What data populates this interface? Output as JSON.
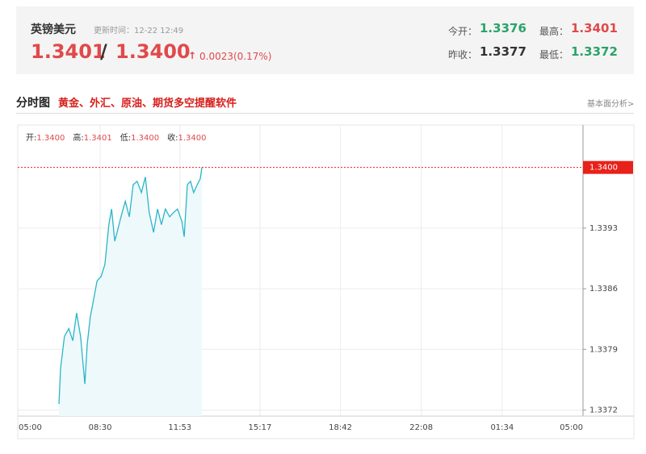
{
  "header": {
    "title": "英镑美元",
    "update_time": "更新时间：12-22 12:49",
    "bid": "1.3401",
    "separator": "/",
    "ask": "1.3400",
    "change": "0.0023(0.17%)",
    "stats": [
      {
        "label": "今开：",
        "value": "1.3376"
      },
      {
        "label": "最高：",
        "value": "1.3401"
      },
      {
        "label": "昨收：",
        "value": "1.3377"
      },
      {
        "label": "最低：",
        "value": "1.3372"
      }
    ]
  },
  "section": {
    "title": "分时图",
    "promo": "黄金、外汇、原油、期货多空提醒软件",
    "link": "基本面分析>"
  },
  "chart_data": {
    "type": "line",
    "info": [
      {
        "label": "开:",
        "value": "1.3400"
      },
      {
        "label": "高:",
        "value": "1.3401"
      },
      {
        "label": "低:",
        "value": "1.3400"
      },
      {
        "label": "收:",
        "value": "1.3400"
      }
    ],
    "x": [
      105,
      109,
      119,
      130,
      140,
      150,
      160,
      171,
      177,
      185,
      191,
      202,
      212,
      222,
      232,
      239,
      247,
      253,
      263,
      274,
      284,
      294,
      304,
      315,
      325,
      335,
      346,
      356,
      366,
      376,
      387,
      397,
      407,
      418,
      424,
      432,
      440,
      448,
      457,
      465,
      469
    ],
    "values": [
      1.33727,
      1.33768,
      1.33805,
      1.33814,
      1.338,
      1.33832,
      1.33805,
      1.3375,
      1.33796,
      1.33828,
      1.33842,
      1.33869,
      1.33874,
      1.33888,
      1.33934,
      1.33952,
      1.33915,
      1.33925,
      1.33943,
      1.33961,
      1.33943,
      1.3398,
      1.33984,
      1.33971,
      1.33989,
      1.33948,
      1.33925,
      1.33952,
      1.33934,
      1.33952,
      1.33943,
      1.33948,
      1.33952,
      1.33938,
      1.3392,
      1.3398,
      1.33984,
      1.33971,
      1.3398,
      1.33987,
      1.34
    ],
    "color": "#2bb5c8",
    "fill": "#eef9fc",
    "xlim": [
      0,
      1440
    ],
    "xticks": [
      {
        "value": 0,
        "label": "05:00"
      },
      {
        "value": 210,
        "label": "08:30"
      },
      {
        "value": 413,
        "label": "11:53"
      },
      {
        "value": 617,
        "label": "15:17"
      },
      {
        "value": 822,
        "label": "18:42"
      },
      {
        "value": 1028,
        "label": "22:08"
      },
      {
        "value": 1234,
        "label": "01:34"
      },
      {
        "value": 1440,
        "label": "05:00"
      }
    ],
    "ylim": [
      1.33713,
      1.34049
    ],
    "yticks": [
      {
        "value": 1.3372,
        "label": "1.3372"
      },
      {
        "value": 1.3379,
        "label": "1.3379"
      },
      {
        "value": 1.3386,
        "label": "1.3386"
      },
      {
        "value": 1.3393,
        "label": "1.3393"
      }
    ],
    "last_price": {
      "value": 1.34,
      "label": "1.3400"
    },
    "last_color": "#e8211b",
    "grid": true
  }
}
